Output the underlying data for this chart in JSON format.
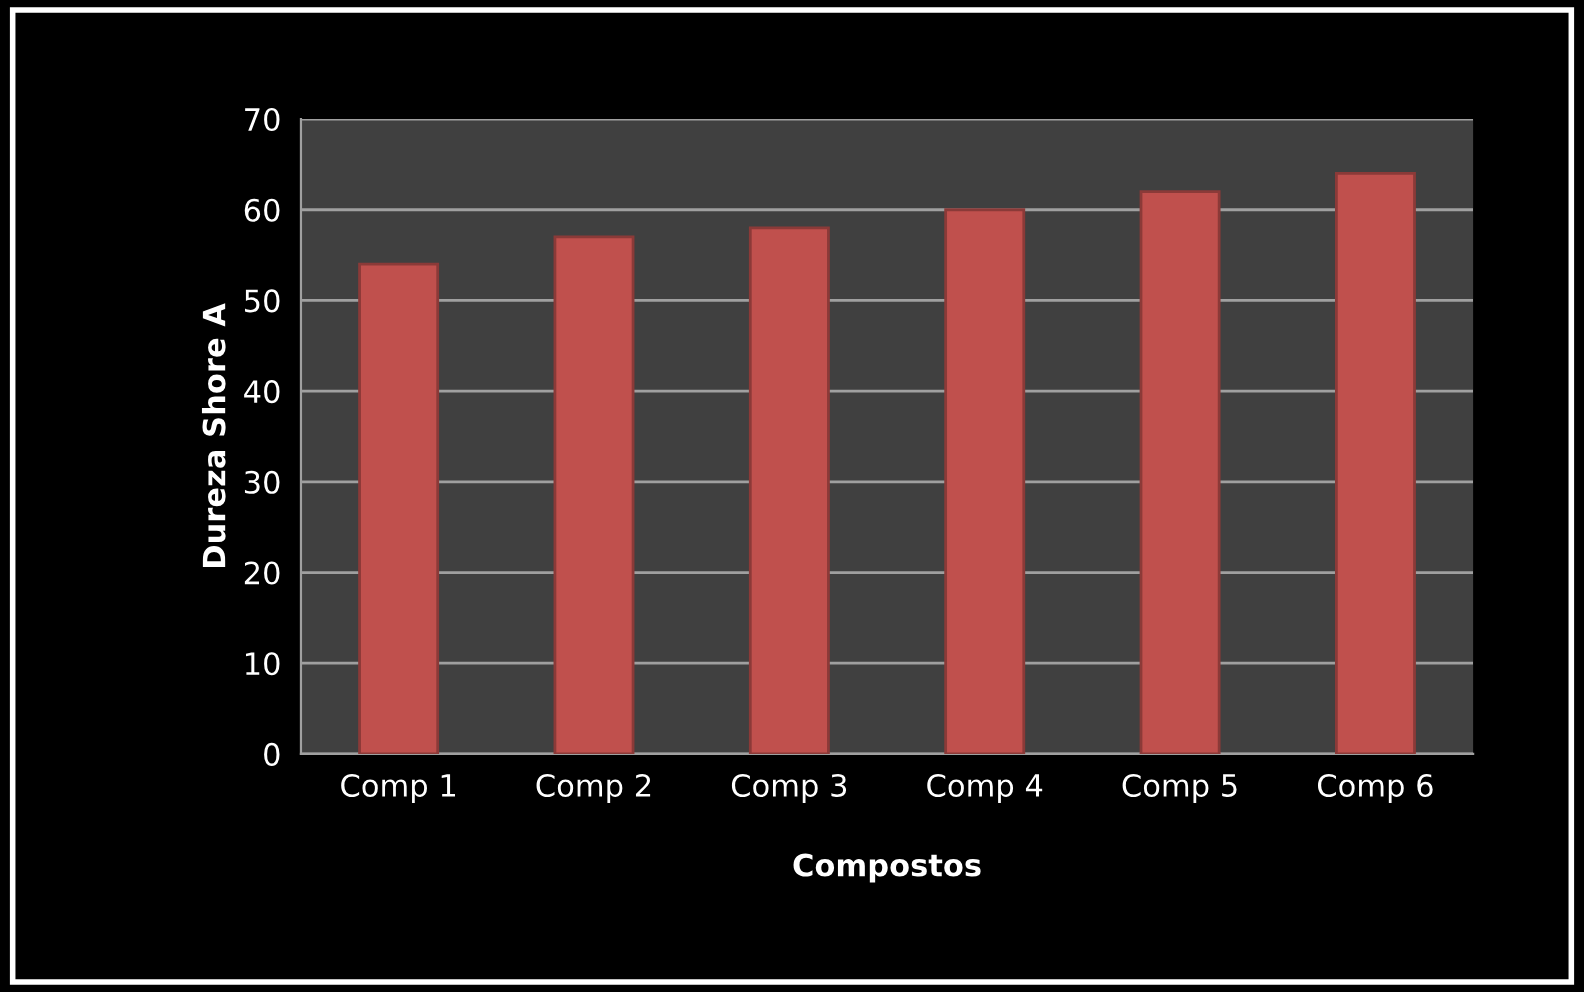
{
  "chart_data": {
    "type": "bar",
    "xlabel": "Compostos",
    "ylabel": "Dureza Shore A",
    "categories": [
      "Comp 1",
      "Comp 2",
      "Comp 3",
      "Comp 4",
      "Comp 5",
      "Comp 6"
    ],
    "values": [
      54,
      57,
      58,
      60,
      62,
      64
    ],
    "color": "#c0504d",
    "ylim": [
      0,
      70
    ],
    "yticks": [
      0,
      10,
      20,
      30,
      40,
      50,
      60,
      70
    ],
    "grid": "y"
  }
}
